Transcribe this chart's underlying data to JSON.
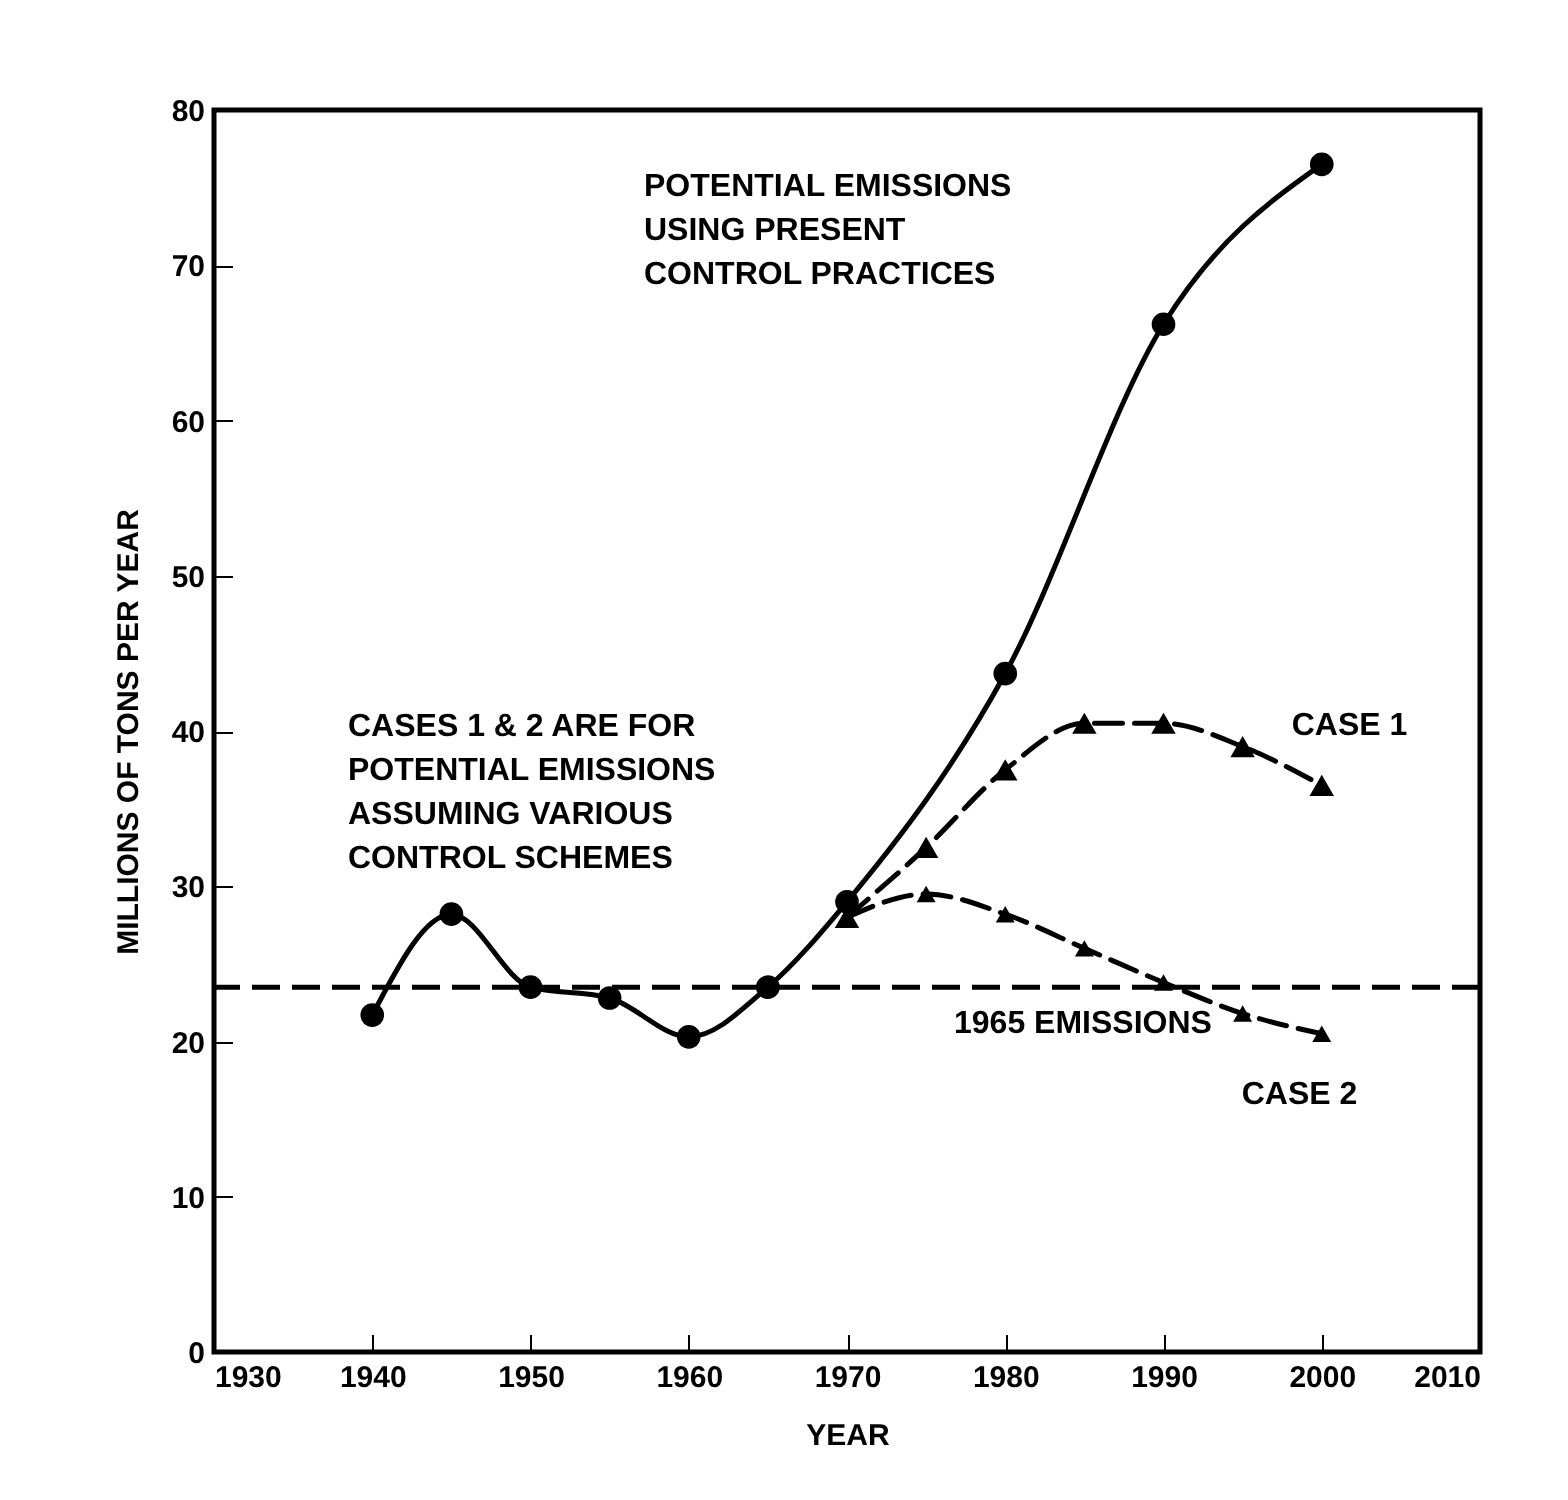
{
  "chart_data": {
    "type": "line",
    "xlabel": "YEAR",
    "ylabel": "MILLIONS OF TONS PER YEAR",
    "xlim": [
      1930,
      2010
    ],
    "xticks": [
      1930,
      1940,
      1950,
      1960,
      1970,
      1980,
      1990,
      2000,
      2010
    ],
    "ylim": [
      0,
      80
    ],
    "yticks": [
      0,
      10,
      20,
      30,
      40,
      50,
      60,
      70,
      80
    ],
    "grid": false,
    "series": [
      {
        "color": "#000000",
        "marker": "circle",
        "line_style": "solid",
        "x": [
          1940,
          1945,
          1950,
          1955,
          1960,
          1965,
          1970,
          1980,
          1990,
          2000
        ],
        "values": [
          21.7,
          28.2,
          23.5,
          22.8,
          20.3,
          23.5,
          29,
          43.7,
          66.2,
          76.5
        ]
      },
      {
        "name": "CASE 1",
        "color": "#000000",
        "marker": "triangle",
        "line_style": "dashed",
        "x": [
          1970,
          1975,
          1980,
          1985,
          1990,
          1995,
          2000
        ],
        "values": [
          28,
          32.5,
          37.5,
          40.5,
          40.5,
          39,
          36.5
        ]
      },
      {
        "name": "CASE 2",
        "color": "#000000",
        "marker": "triangle",
        "line_style": "dashed",
        "x": [
          1970,
          1975,
          1980,
          1985,
          1990,
          1995,
          2000
        ],
        "values": [
          28,
          29.5,
          28.2,
          26,
          23.8,
          21.8,
          20.5
        ]
      }
    ],
    "ref_lines": [
      {
        "axis": "y",
        "value": 23.5,
        "label": "1965 EMISSIONS",
        "line_style": "dashed",
        "color": "#000000"
      }
    ],
    "annotations": [
      "POTENTIAL EMISSIONS\nUSING PRESENT\nCONTROL PRACTICES",
      "CASES 1 & 2 ARE FOR\nPOTENTIAL EMISSIONS\nASSUMING VARIOUS\nCONTROL SCHEMES"
    ]
  }
}
